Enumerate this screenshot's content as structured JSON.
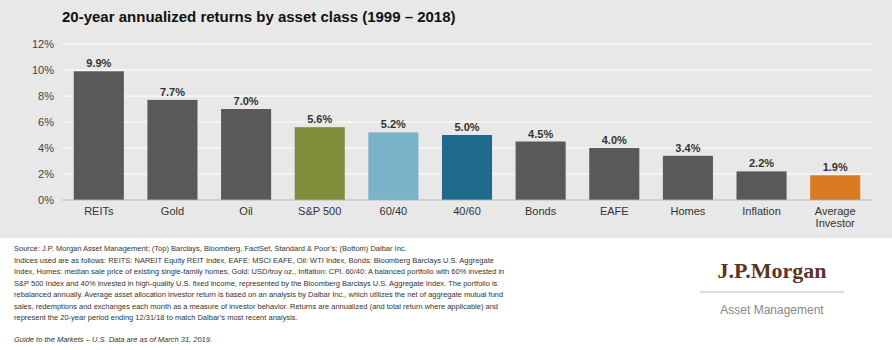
{
  "chart_data": {
    "type": "bar",
    "title": "20-year annualized returns by asset class (1999 – 2018)",
    "categories": [
      "REITs",
      "Gold",
      "Oil",
      "S&P 500",
      "60/40",
      "40/60",
      "Bonds",
      "EAFE",
      "Homes",
      "Inflation",
      "Average\nInvestor"
    ],
    "values": [
      9.9,
      7.7,
      7.0,
      5.6,
      5.2,
      5.0,
      4.5,
      4.0,
      3.4,
      2.2,
      1.9
    ],
    "value_labels": [
      "9.9%",
      "7.7%",
      "7.0%",
      "5.6%",
      "5.2%",
      "5.0%",
      "4.5%",
      "4.0%",
      "3.4%",
      "2.2%",
      "1.9%"
    ],
    "colors": [
      "#595959",
      "#595959",
      "#595959",
      "#7f8c3a",
      "#7ab3c8",
      "#1e6b8c",
      "#595959",
      "#595959",
      "#595959",
      "#595959",
      "#d97b20"
    ],
    "ylim": [
      0,
      12
    ],
    "yticks": [
      {
        "value": 0,
        "label": "0%"
      },
      {
        "value": 2,
        "label": "2%"
      },
      {
        "value": 4,
        "label": "4%"
      },
      {
        "value": 6,
        "label": "6%"
      },
      {
        "value": 8,
        "label": "8%"
      },
      {
        "value": 10,
        "label": "10%"
      },
      {
        "value": 12,
        "label": "12%"
      }
    ],
    "grid": true,
    "data_labels": true,
    "annotations": [
      "Source: J.P. Morgan Asset Management; (Top) Barclays, Bloomberg, FactSet, Standard & Poor’s; (Bottom) Dalbar Inc.",
      "Indices used are as follows: REITS: NAREIT Equity REIT Index, EAFE: MSCI EAFE, Oil: WTI Index, Bonds: Bloomberg Barclays U.S. Aggregate",
      "Index, Homes: median sale price of existing single-family homes, Gold: USD/troy oz., Inflation: CPI. 60/40: A balanced portfolio with 60% invested in",
      "S&P 500 Index and 40% invested in high-quality U.S. fixed income, represented by the Bloomberg Barclays U.S. Aggregate Index. The portfolio is",
      "rebalanced annually. Average asset allocation investor return is based on an analysis by Dalbar Inc., which utilizes the net of aggregate mutual fund",
      "sales, redemptions and exchanges each month as a measure of investor behavior. Returns are annualized (and total return where applicable) and",
      "represent the 20-year period ending 12/31/18 to match Dalbar’s most recent analysis.",
      "Guide to the Markets – U.S. Data are as of March 31, 2019.",
      "J.P.Morgan",
      "Asset Management"
    ]
  }
}
